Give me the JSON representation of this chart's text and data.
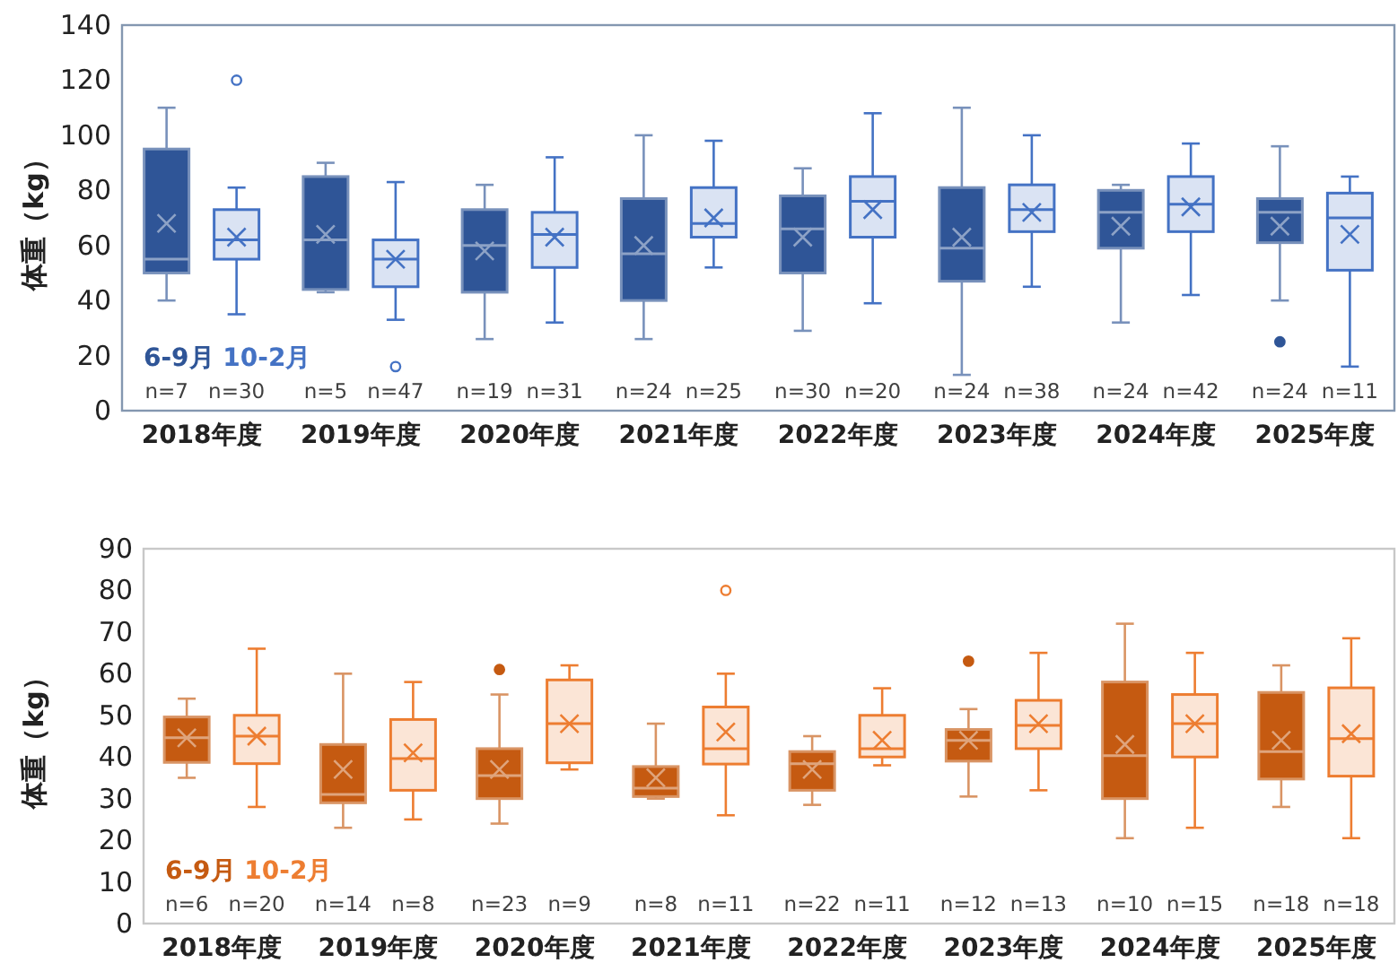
{
  "chart_data": [
    {
      "type": "box",
      "ylabel": "体重（kg）",
      "categories": [
        "2018年度",
        "2019年度",
        "2020年度",
        "2021年度",
        "2022年度",
        "2023年度",
        "2024年度",
        "2025年度"
      ],
      "ylim": [
        0,
        140
      ],
      "yticks": [
        0,
        20,
        40,
        60,
        80,
        100,
        120,
        140
      ],
      "legend": "bottom left",
      "series": [
        {
          "name": "6-9月",
          "color": "#2f5597",
          "value_labels": [
            "n=7",
            "n=5",
            "n=19",
            "n=24",
            "n=30",
            "n=24",
            "n=24",
            "n=24"
          ],
          "boxes": [
            {
              "low": 40,
              "q1": 50,
              "median": 55,
              "q3": 95,
              "high": 110,
              "mean": 68
            },
            {
              "low": 43,
              "q1": 44,
              "median": 62,
              "q3": 85,
              "high": 90,
              "mean": 64
            },
            {
              "low": 26,
              "q1": 43,
              "median": 60,
              "q3": 73,
              "high": 82,
              "mean": 58
            },
            {
              "low": 26,
              "q1": 40,
              "median": 57,
              "q3": 77,
              "high": 100,
              "mean": 60
            },
            {
              "low": 29,
              "q1": 50,
              "median": 66,
              "q3": 78,
              "high": 88,
              "mean": 63
            },
            {
              "low": 13,
              "q1": 47,
              "median": 59,
              "q3": 81,
              "high": 110,
              "mean": 63
            },
            {
              "low": 32,
              "q1": 59,
              "median": 72,
              "q3": 80,
              "high": 82,
              "mean": 67
            },
            {
              "low": 40,
              "q1": 61,
              "median": 72,
              "q3": 77,
              "high": 96,
              "mean": 67,
              "outliers": [
                25
              ]
            }
          ]
        },
        {
          "name": "10-2月",
          "color": "#4472c4",
          "value_labels": [
            "n=30",
            "n=47",
            "n=31",
            "n=25",
            "n=20",
            "n=38",
            "n=42",
            "n=11"
          ],
          "boxes": [
            {
              "low": 35,
              "q1": 55,
              "median": 62,
              "q3": 73,
              "high": 81,
              "mean": 63,
              "outliers": [
                120
              ]
            },
            {
              "low": 33,
              "q1": 45,
              "median": 55,
              "q3": 62,
              "high": 83,
              "mean": 55,
              "outliers": [
                16
              ]
            },
            {
              "low": 32,
              "q1": 52,
              "median": 64,
              "q3": 72,
              "high": 92,
              "mean": 63
            },
            {
              "low": 52,
              "q1": 63,
              "median": 68,
              "q3": 81,
              "high": 98,
              "mean": 70
            },
            {
              "low": 39,
              "q1": 63,
              "median": 76,
              "q3": 85,
              "high": 108,
              "mean": 73
            },
            {
              "low": 45,
              "q1": 65,
              "median": 73,
              "q3": 82,
              "high": 100,
              "mean": 72
            },
            {
              "low": 42,
              "q1": 65,
              "median": 75,
              "q3": 85,
              "high": 97,
              "mean": 74
            },
            {
              "low": 16,
              "q1": 51,
              "median": 70,
              "q3": 79,
              "high": 85,
              "mean": 64
            }
          ]
        }
      ]
    },
    {
      "type": "box",
      "ylabel": "体重（kg）",
      "categories": [
        "2018年度",
        "2019年度",
        "2020年度",
        "2021年度",
        "2022年度",
        "2023年度",
        "2024年度",
        "2025年度"
      ],
      "ylim": [
        0,
        90
      ],
      "yticks": [
        0,
        10,
        20,
        30,
        40,
        50,
        60,
        70,
        80,
        90
      ],
      "legend": "bottom left",
      "series": [
        {
          "name": "6-9月",
          "color": "#c55a11",
          "value_labels": [
            "n=6",
            "n=14",
            "n=23",
            "n=8",
            "n=22",
            "n=12",
            "n=10",
            "n=18"
          ],
          "boxes": [
            {
              "low": 35,
              "q1": 38.7,
              "median": 44.6,
              "q3": 49.6,
              "high": 54,
              "mean": 44.6
            },
            {
              "low": 23,
              "q1": 29,
              "median": 31,
              "q3": 43,
              "high": 60,
              "mean": 37
            },
            {
              "low": 24,
              "q1": 30,
              "median": 35.5,
              "q3": 42,
              "high": 55,
              "mean": 37,
              "outliers": [
                61
              ]
            },
            {
              "low": 30,
              "q1": 30.5,
              "median": 32.5,
              "q3": 37.7,
              "high": 48,
              "mean": 35
            },
            {
              "low": 28.5,
              "q1": 32,
              "median": 38.4,
              "q3": 41.3,
              "high": 45,
              "mean": 37
            },
            {
              "low": 30.5,
              "q1": 39,
              "median": 44,
              "q3": 46.6,
              "high": 51.5,
              "mean": 44,
              "outliers": [
                63
              ]
            },
            {
              "low": 20.5,
              "q1": 30,
              "median": 40.3,
              "q3": 58,
              "high": 72,
              "mean": 43
            },
            {
              "low": 28,
              "q1": 34.7,
              "median": 41.3,
              "q3": 55.5,
              "high": 62,
              "mean": 44
            }
          ]
        },
        {
          "name": "10-2月",
          "color": "#ed7d31",
          "value_labels": [
            "n=20",
            "n=8",
            "n=9",
            "n=11",
            "n=11",
            "n=13",
            "n=15",
            "n=18"
          ],
          "boxes": [
            {
              "low": 28,
              "q1": 38.4,
              "median": 45,
              "q3": 50,
              "high": 66,
              "mean": 45
            },
            {
              "low": 25,
              "q1": 32,
              "median": 39.6,
              "q3": 49,
              "high": 58,
              "mean": 41
            },
            {
              "low": 37,
              "q1": 38.6,
              "median": 48,
              "q3": 58.5,
              "high": 62,
              "mean": 48
            },
            {
              "low": 26,
              "q1": 38.3,
              "median": 42,
              "q3": 52,
              "high": 60,
              "mean": 46,
              "outliers": [
                80
              ]
            },
            {
              "low": 38,
              "q1": 40,
              "median": 42,
              "q3": 50,
              "high": 56.5,
              "mean": 44
            },
            {
              "low": 32,
              "q1": 42,
              "median": 47.6,
              "q3": 53.6,
              "high": 65,
              "mean": 48
            },
            {
              "low": 23,
              "q1": 40,
              "median": 48,
              "q3": 55,
              "high": 65,
              "mean": 48
            },
            {
              "low": 20.5,
              "q1": 35.4,
              "median": 44.4,
              "q3": 56.6,
              "high": 68.5,
              "mean": 45.6
            }
          ]
        }
      ]
    }
  ]
}
